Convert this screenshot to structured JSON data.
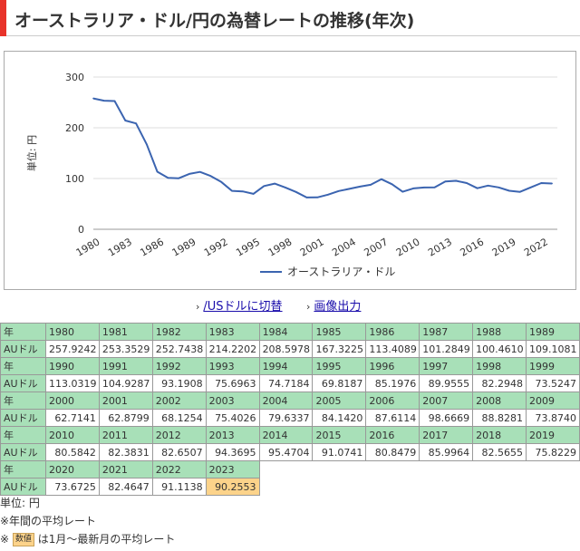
{
  "title": "オーストラリア・ドル/円の為替レートの推移(年次)",
  "colors": {
    "accent": "#e8332a",
    "line": "#3b64b0",
    "header_bg": "#a8e0b8",
    "highlight": "#fcd38a",
    "link": "#1a0dab"
  },
  "chart_data": {
    "type": "line",
    "ylabel": "単位: 円",
    "ylim": [
      0,
      300
    ],
    "yticks": [
      0,
      100,
      200,
      300
    ],
    "xticks": [
      1980,
      1983,
      1986,
      1989,
      1992,
      1995,
      1998,
      2001,
      2004,
      2007,
      2010,
      2013,
      2016,
      2019,
      2022
    ],
    "grid": true,
    "legend_position": "bottom",
    "series": [
      {
        "name": "オーストラリア・ドル",
        "x": [
          1980,
          1981,
          1982,
          1983,
          1984,
          1985,
          1986,
          1987,
          1988,
          1989,
          1990,
          1991,
          1992,
          1993,
          1994,
          1995,
          1996,
          1997,
          1998,
          1999,
          2000,
          2001,
          2002,
          2003,
          2004,
          2005,
          2006,
          2007,
          2008,
          2009,
          2010,
          2011,
          2012,
          2013,
          2014,
          2015,
          2016,
          2017,
          2018,
          2019,
          2020,
          2021,
          2022,
          2023
        ],
        "values": [
          257.9242,
          253.3529,
          252.7438,
          214.2202,
          208.5978,
          167.3225,
          113.4089,
          101.2849,
          100.461,
          109.1081,
          113.0319,
          104.9287,
          93.1908,
          75.6963,
          74.7184,
          69.8187,
          85.1976,
          89.9555,
          82.2948,
          73.5247,
          62.7141,
          62.8799,
          68.1254,
          75.4026,
          79.6337,
          84.142,
          87.6114,
          98.6669,
          88.8281,
          73.874,
          80.5842,
          82.3831,
          82.6507,
          94.3695,
          95.4704,
          91.0741,
          80.8479,
          85.9964,
          82.5655,
          75.8229,
          73.6725,
          82.4647,
          91.1138,
          90.2553
        ]
      }
    ]
  },
  "links": {
    "usd": "/USドルに切替",
    "image": "画像出力"
  },
  "table": {
    "year_label": "年",
    "value_label": "AUドル",
    "rows": [
      {
        "years": [
          "1980",
          "1981",
          "1982",
          "1983",
          "1984",
          "1985",
          "1986",
          "1987",
          "1988",
          "1989"
        ],
        "values": [
          "257.9242",
          "253.3529",
          "252.7438",
          "214.2202",
          "208.5978",
          "167.3225",
          "113.4089",
          "101.2849",
          "100.4610",
          "109.1081"
        ]
      },
      {
        "years": [
          "1990",
          "1991",
          "1992",
          "1993",
          "1994",
          "1995",
          "1996",
          "1997",
          "1998",
          "1999"
        ],
        "values": [
          "113.0319",
          "104.9287",
          "93.1908",
          "75.6963",
          "74.7184",
          "69.8187",
          "85.1976",
          "89.9555",
          "82.2948",
          "73.5247"
        ]
      },
      {
        "years": [
          "2000",
          "2001",
          "2002",
          "2003",
          "2004",
          "2005",
          "2006",
          "2007",
          "2008",
          "2009"
        ],
        "values": [
          "62.7141",
          "62.8799",
          "68.1254",
          "75.4026",
          "79.6337",
          "84.1420",
          "87.6114",
          "98.6669",
          "88.8281",
          "73.8740"
        ]
      },
      {
        "years": [
          "2010",
          "2011",
          "2012",
          "2013",
          "2014",
          "2015",
          "2016",
          "2017",
          "2018",
          "2019"
        ],
        "values": [
          "80.5842",
          "82.3831",
          "82.6507",
          "94.3695",
          "95.4704",
          "91.0741",
          "80.8479",
          "85.9964",
          "82.5655",
          "75.8229"
        ]
      },
      {
        "years": [
          "2020",
          "2021",
          "2022",
          "2023"
        ],
        "values": [
          "73.6725",
          "82.4647",
          "91.1138",
          "90.2553"
        ],
        "highlight_index": 3
      }
    ]
  },
  "notes": {
    "unit": "単位: 円",
    "annual": "※年間の平均レート",
    "prefix": "※",
    "badge": "数値",
    "latest": "は1月～最新月の平均レート"
  }
}
